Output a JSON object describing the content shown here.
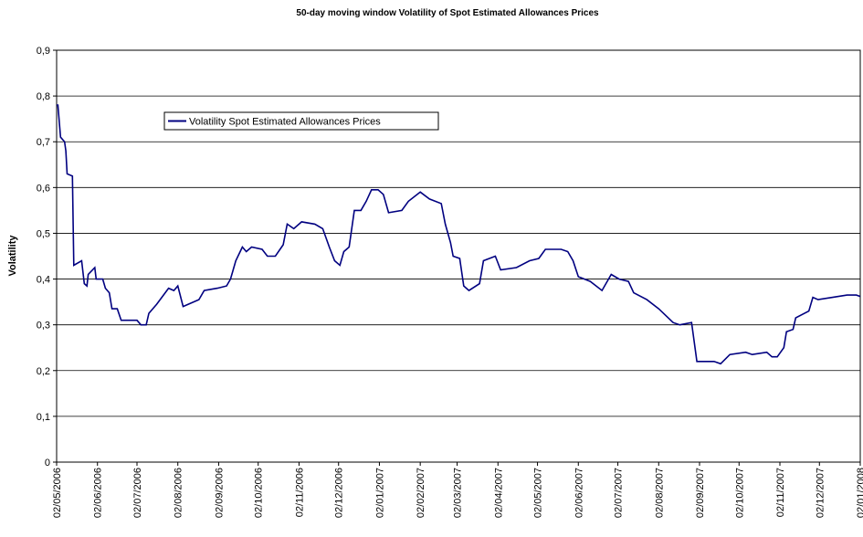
{
  "chart_data": {
    "type": "line",
    "title": "50-day moving window Volatility of Spot Estimated Allowances Prices",
    "y_label": "Volatility",
    "legend": "upper left",
    "grid": true,
    "xlim": [
      "02/05/2006",
      "02/01/2008"
    ],
    "xticks": [
      "02/05/2006",
      "02/06/2006",
      "02/07/2006",
      "02/08/2006",
      "02/09/2006",
      "02/10/2006",
      "02/11/2006",
      "02/12/2006",
      "02/01/2007",
      "02/02/2007",
      "02/03/2007",
      "02/04/2007",
      "02/05/2007",
      "02/06/2007",
      "02/07/2007",
      "02/08/2007",
      "02/09/2007",
      "02/10/2007",
      "02/11/2007",
      "02/12/2007",
      "02/01/2008"
    ],
    "ylim": [
      0,
      0.9
    ],
    "yticks": [
      0,
      {
        "value": 0.1,
        "label": "0,1"
      },
      {
        "value": 0.2,
        "label": "0,2"
      },
      {
        "value": 0.3,
        "label": "0,3"
      },
      {
        "value": 0.4,
        "label": "0,4"
      },
      {
        "value": 0.5,
        "label": "0,5"
      },
      {
        "value": 0.6,
        "label": "0,6"
      },
      {
        "value": 0.7,
        "label": "0,7"
      },
      {
        "value": 0.8,
        "label": "0,8"
      },
      {
        "value": 0.9,
        "label": "0,9"
      }
    ],
    "x": [
      "02/05/2006",
      "03/05/2006",
      "05/05/2006",
      "08/05/2006",
      "09/05/2006",
      "10/05/2006",
      "14/05/2006",
      "15/05/2006",
      "21/05/2006",
      "23/05/2006",
      "25/05/2006",
      "26/05/2006",
      "31/05/2006",
      "01/06/2006",
      "06/06/2006",
      "08/06/2006",
      "11/06/2006",
      "13/06/2006",
      "17/06/2006",
      "20/06/2006",
      "02/07/2006",
      "05/07/2006",
      "09/07/2006",
      "11/07/2006",
      "17/07/2006",
      "26/07/2006",
      "30/07/2006",
      "02/08/2006",
      "06/08/2006",
      "14/08/2006",
      "18/08/2006",
      "22/08/2006",
      "01/09/2006",
      "08/09/2006",
      "11/09/2006",
      "15/09/2006",
      "20/09/2006",
      "23/09/2006",
      "27/09/2006",
      "05/10/2006",
      "09/10/2006",
      "15/10/2006",
      "21/10/2006",
      "24/10/2006",
      "29/10/2006",
      "04/11/2006",
      "14/11/2006",
      "20/11/2006",
      "25/11/2006",
      "29/11/2006",
      "03/12/2006",
      "06/12/2006",
      "10/12/2006",
      "14/12/2006",
      "19/12/2006",
      "23/12/2006",
      "27/12/2006",
      "01/01/2007",
      "05/01/2007",
      "09/01/2007",
      "19/01/2007",
      "24/01/2007",
      "02/02/2007",
      "09/02/2007",
      "18/02/2007",
      "21/02/2007",
      "25/02/2007",
      "27/02/2007",
      "04/03/2007",
      "07/03/2007",
      "11/03/2007",
      "19/03/2007",
      "22/03/2007",
      "31/03/2007",
      "04/04/2007",
      "16/04/2007",
      "26/04/2007",
      "03/05/2007",
      "08/05/2007",
      "20/05/2007",
      "25/05/2007",
      "29/05/2007",
      "02/06/2007",
      "11/06/2007",
      "20/06/2007",
      "27/06/2007",
      "03/07/2007",
      "10/07/2007",
      "14/07/2007",
      "24/07/2007",
      "02/08/2007",
      "13/08/2007",
      "18/08/2007",
      "27/08/2007",
      "31/08/2007",
      "13/09/2007",
      "18/09/2007",
      "25/09/2007",
      "07/10/2007",
      "12/10/2007",
      "23/10/2007",
      "27/10/2007",
      "31/10/2007",
      "05/11/2007",
      "07/11/2007",
      "12/11/2007",
      "14/11/2007",
      "24/11/2007",
      "27/11/2007",
      "01/12/2007",
      "12/12/2007",
      "23/12/2007",
      "30/12/2007",
      "02/01/2008"
    ],
    "series": [
      {
        "name": "Volatility Spot Estimated Allowances Prices",
        "color": "#000080",
        "values": [
          0.78,
          0.78,
          0.71,
          0.7,
          0.68,
          0.63,
          0.625,
          0.43,
          0.44,
          0.39,
          0.385,
          0.41,
          0.425,
          0.4,
          0.4,
          0.38,
          0.37,
          0.335,
          0.335,
          0.31,
          0.31,
          0.3,
          0.3,
          0.325,
          0.345,
          0.38,
          0.375,
          0.385,
          0.34,
          0.35,
          0.355,
          0.375,
          0.38,
          0.385,
          0.4,
          0.44,
          0.47,
          0.46,
          0.47,
          0.465,
          0.45,
          0.45,
          0.475,
          0.52,
          0.51,
          0.525,
          0.52,
          0.51,
          0.47,
          0.44,
          0.43,
          0.46,
          0.47,
          0.55,
          0.55,
          0.57,
          0.595,
          0.595,
          0.585,
          0.545,
          0.55,
          0.57,
          0.59,
          0.575,
          0.565,
          0.52,
          0.48,
          0.45,
          0.445,
          0.385,
          0.375,
          0.39,
          0.44,
          0.45,
          0.42,
          0.425,
          0.44,
          0.445,
          0.465,
          0.465,
          0.46,
          0.44,
          0.405,
          0.395,
          0.375,
          0.41,
          0.4,
          0.395,
          0.37,
          0.355,
          0.335,
          0.305,
          0.3,
          0.305,
          0.22,
          0.22,
          0.215,
          0.235,
          0.24,
          0.235,
          0.24,
          0.23,
          0.23,
          0.25,
          0.285,
          0.29,
          0.315,
          0.33,
          0.36,
          0.355,
          0.36,
          0.365,
          0.365,
          0.362
        ]
      }
    ]
  }
}
